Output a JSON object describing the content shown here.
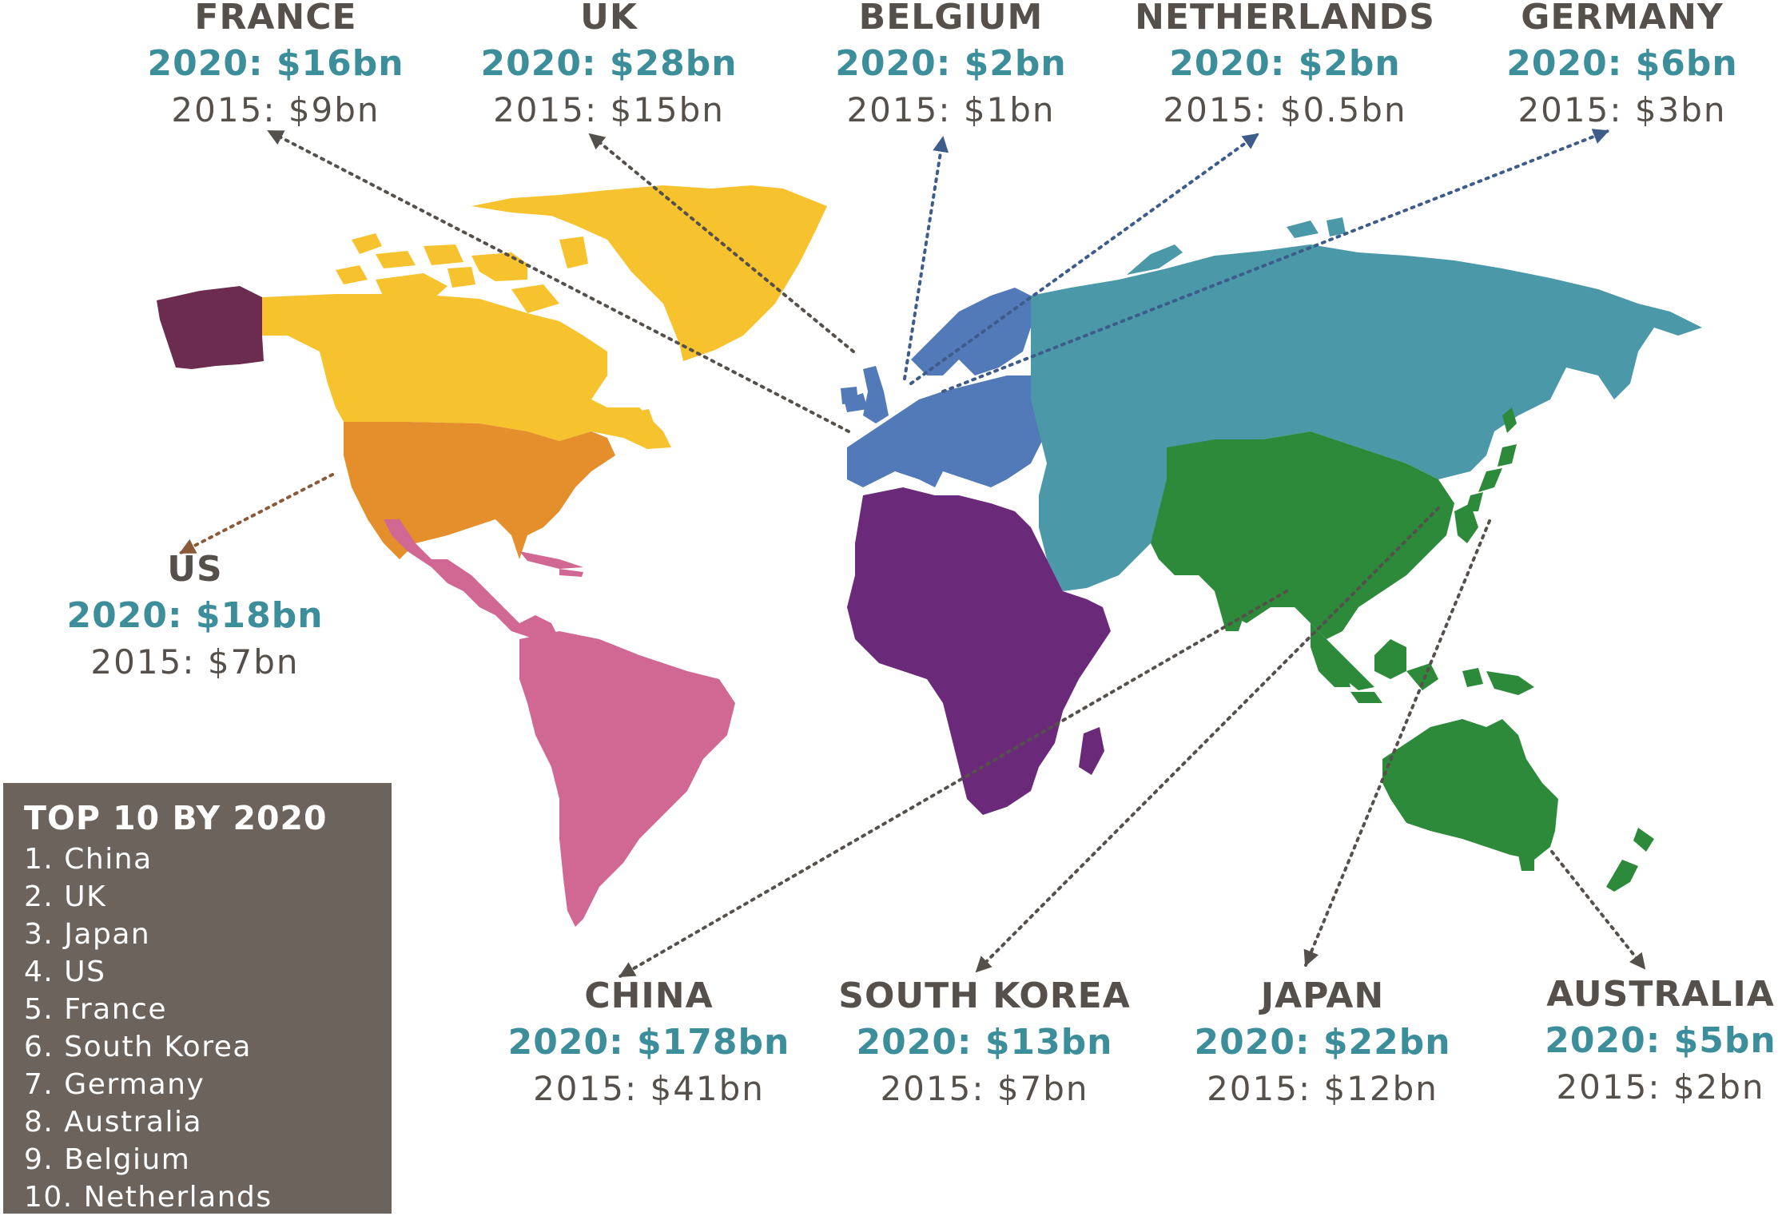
{
  "colors": {
    "north_america": "#f6c22e",
    "alaska": "#6b2c4f",
    "usa": "#e58f2c",
    "latin_america": "#d06893",
    "europe": "#5279b8",
    "africa": "#6a2a79",
    "russia_asia": "#4a98a8",
    "south_asia": "#2e8a3b",
    "label_dark": "#55504b",
    "label_teal": "#3d8e9b",
    "panel_bg": "#6c635d"
  },
  "countries": [
    {
      "id": "france",
      "name": "FRANCE",
      "value_2020": "2020: $16bn",
      "value_2015": "2015: $9bn"
    },
    {
      "id": "uk",
      "name": "UK",
      "value_2020": "2020: $28bn",
      "value_2015": "2015: $15bn"
    },
    {
      "id": "belgium",
      "name": "BELGIUM",
      "value_2020": "2020: $2bn",
      "value_2015": "2015: $1bn"
    },
    {
      "id": "netherlands",
      "name": "NETHERLANDS",
      "value_2020": "2020: $2bn",
      "value_2015": "2015: $0.5bn"
    },
    {
      "id": "germany",
      "name": "GERMANY",
      "value_2020": "2020: $6bn",
      "value_2015": "2015: $3bn"
    },
    {
      "id": "us",
      "name": "US",
      "value_2020": "2020: $18bn",
      "value_2015": "2015: $7bn"
    },
    {
      "id": "china",
      "name": "CHINA",
      "value_2020": "2020: $178bn",
      "value_2015": "2015: $41bn"
    },
    {
      "id": "south-korea",
      "name": "SOUTH KOREA",
      "value_2020": "2020: $13bn",
      "value_2015": "2015: $7bn"
    },
    {
      "id": "japan",
      "name": "JAPAN",
      "value_2020": "2020: $22bn",
      "value_2015": "2015: $12bn"
    },
    {
      "id": "australia",
      "name": "AUSTRALIA",
      "value_2020": "2020: $5bn",
      "value_2015": "2015: $2bn"
    }
  ],
  "top10": {
    "title": "TOP 10 BY 2020",
    "items": [
      "1. China",
      "2. UK",
      "3. Japan",
      "4. US",
      "5. France",
      "6. South Korea",
      "7. Germany",
      "8. Australia",
      "9. Belgium",
      "10. Netherlands"
    ]
  }
}
